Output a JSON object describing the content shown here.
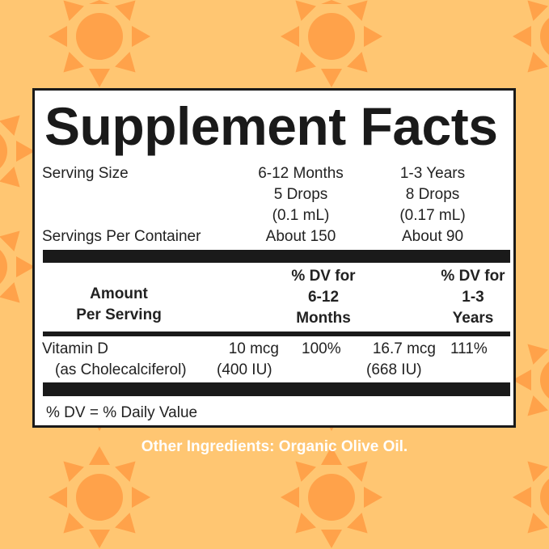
{
  "colors": {
    "background": "#FFC672",
    "sun": "#FFA24A",
    "panel": "#FFFFFF",
    "text": "#222222"
  },
  "title": "Supplement Facts",
  "serving": {
    "size_label": "Serving Size",
    "col1": [
      "6-12 Months",
      "5 Drops",
      "(0.1 mL)"
    ],
    "col2": [
      "1-3 Years",
      "8 Drops",
      "(0.17 mL)"
    ],
    "per_container_label": "Servings Per Container",
    "per_container_col1": "About 150",
    "per_container_col2": "About 90"
  },
  "headers": {
    "amount": [
      "Amount",
      "Per Serving"
    ],
    "dv1": [
      "% DV for",
      "6-12",
      "Months"
    ],
    "dv2": [
      "% DV for",
      "1-3",
      "Years"
    ]
  },
  "rows": [
    {
      "name": "Vitamin D",
      "sub": "(as Cholecalciferol)",
      "amount1": "10 mcg",
      "amount1_sub": "(400 IU)",
      "dv1": "100%",
      "amount2": "16.7 mcg",
      "amount2_sub": "(668 IU)",
      "dv2": "111%"
    }
  ],
  "footnote": "% DV = % Daily Value",
  "other_ingredients": "Other Ingredients: Organic Olive Oil."
}
